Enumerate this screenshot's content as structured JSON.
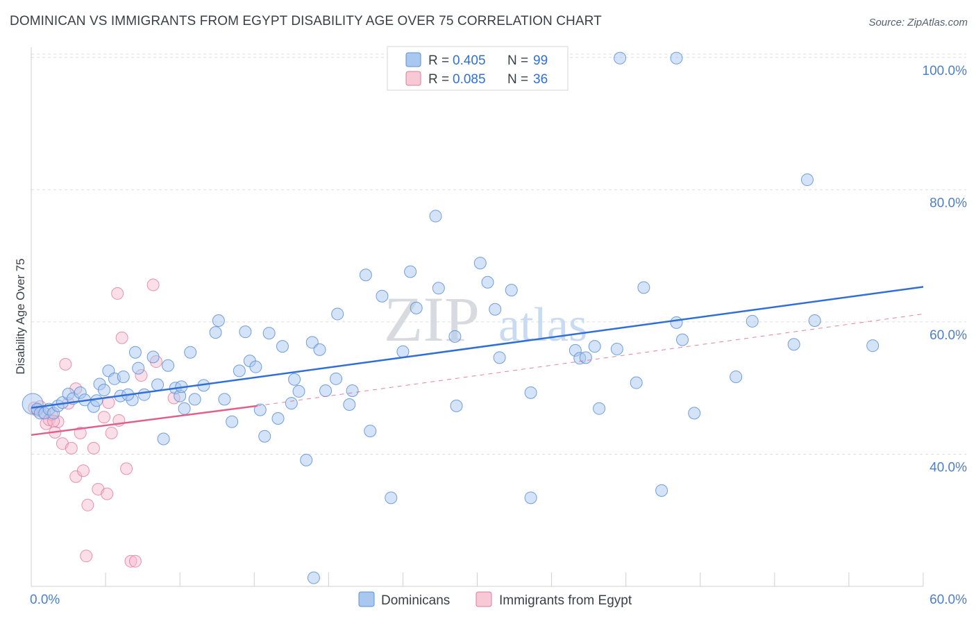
{
  "header": {
    "title": "DOMINICAN VS IMMIGRANTS FROM EGYPT DISABILITY AGE OVER 75 CORRELATION CHART",
    "source": "Source: ZipAtlas.com"
  },
  "watermark": {
    "part1": "ZIP",
    "part2": "atlas"
  },
  "legend": {
    "r_key": "R =",
    "n_key": "N =",
    "series": [
      {
        "r_value": "0.405",
        "n_value": "99"
      },
      {
        "r_value": "0.085",
        "n_value": "36"
      }
    ]
  },
  "colors": {
    "blue_fill": "#a9c8f0",
    "blue_stroke": "#5b8fd6",
    "blue_line": "#2f6fd6",
    "pink_fill": "#f7b8cc",
    "pink_stroke": "#e07a9c",
    "pink_line": "#e0608a",
    "grid": "#dddddd",
    "tick_label": "#4a7fd0"
  },
  "chart_data": {
    "type": "scatter",
    "title": "DOMINICAN VS IMMIGRANTS FROM EGYPT DISABILITY AGE OVER 75 CORRELATION CHART",
    "xlabel": "",
    "ylabel": "Disability Age Over 75",
    "x_tick_labels": [
      "0.0%",
      "60.0%"
    ],
    "y_tick_labels": [
      "40.0%",
      "60.0%",
      "80.0%",
      "100.0%"
    ],
    "xlim": [
      0,
      60
    ],
    "ylim": [
      20,
      102
    ],
    "y_ticks": [
      40,
      60,
      80,
      100
    ],
    "grid": true,
    "legend_position": "top-center",
    "series": [
      {
        "name": "Dominicans",
        "r": 0.405,
        "n": 99,
        "trend": {
          "x": [
            0,
            60
          ],
          "y": [
            47.0,
            65.3
          ],
          "style": "solid"
        },
        "points": [
          [
            0.1,
            47.6
          ],
          [
            0.4,
            46.8
          ],
          [
            0.6,
            46.2
          ],
          [
            0.9,
            46.2
          ],
          [
            1.2,
            46.8
          ],
          [
            1.5,
            46.2
          ],
          [
            1.8,
            47.3
          ],
          [
            2.1,
            47.8
          ],
          [
            2.5,
            49.1
          ],
          [
            2.8,
            48.4
          ],
          [
            3.3,
            49.3
          ],
          [
            3.6,
            48.2
          ],
          [
            4.2,
            47.2
          ],
          [
            4.4,
            48.1
          ],
          [
            4.6,
            50.6
          ],
          [
            4.9,
            49.7
          ],
          [
            5.2,
            52.6
          ],
          [
            5.6,
            51.4
          ],
          [
            6.0,
            48.8
          ],
          [
            6.2,
            51.7
          ],
          [
            6.8,
            48.2
          ],
          [
            6.5,
            49.0
          ],
          [
            7.0,
            55.4
          ],
          [
            7.2,
            53.0
          ],
          [
            7.6,
            49.0
          ],
          [
            8.2,
            54.7
          ],
          [
            8.5,
            50.5
          ],
          [
            8.9,
            42.3
          ],
          [
            9.2,
            53.4
          ],
          [
            9.7,
            50.0
          ],
          [
            10.0,
            48.8
          ],
          [
            10.3,
            46.9
          ],
          [
            10.7,
            55.4
          ],
          [
            11.0,
            48.3
          ],
          [
            11.6,
            50.4
          ],
          [
            12.4,
            58.4
          ],
          [
            12.6,
            60.2
          ],
          [
            13.0,
            48.3
          ],
          [
            13.5,
            44.9
          ],
          [
            14.0,
            52.6
          ],
          [
            14.4,
            58.5
          ],
          [
            14.7,
            54.1
          ],
          [
            15.1,
            53.2
          ],
          [
            15.4,
            46.7
          ],
          [
            15.7,
            42.7
          ],
          [
            16.0,
            58.3
          ],
          [
            16.6,
            45.4
          ],
          [
            16.9,
            56.3
          ],
          [
            17.5,
            47.7
          ],
          [
            17.7,
            51.3
          ],
          [
            18.0,
            49.5
          ],
          [
            18.5,
            39.1
          ],
          [
            18.9,
            56.9
          ],
          [
            19.0,
            21.3
          ],
          [
            19.4,
            55.8
          ],
          [
            19.8,
            49.6
          ],
          [
            20.6,
            61.2
          ],
          [
            20.5,
            51.4
          ],
          [
            21.4,
            47.5
          ],
          [
            21.6,
            49.6
          ],
          [
            22.5,
            67.1
          ],
          [
            22.8,
            43.5
          ],
          [
            23.6,
            63.9
          ],
          [
            24.2,
            33.4
          ],
          [
            25.0,
            55.5
          ],
          [
            25.5,
            67.6
          ],
          [
            25.9,
            62.1
          ],
          [
            27.2,
            76.0
          ],
          [
            27.4,
            65.1
          ],
          [
            28.5,
            57.8
          ],
          [
            28.6,
            47.3
          ],
          [
            30.2,
            68.9
          ],
          [
            30.7,
            66.0
          ],
          [
            31.2,
            61.9
          ],
          [
            31.5,
            54.6
          ],
          [
            32.3,
            64.8
          ],
          [
            33.6,
            49.3
          ],
          [
            33.6,
            33.4
          ],
          [
            36.6,
            55.7
          ],
          [
            36.9,
            54.5
          ],
          [
            37.3,
            54.6
          ],
          [
            38.2,
            46.9
          ],
          [
            39.4,
            55.9
          ],
          [
            39.6,
            99.9
          ],
          [
            40.7,
            50.8
          ],
          [
            41.2,
            65.2
          ],
          [
            42.4,
            34.5
          ],
          [
            43.4,
            59.9
          ],
          [
            43.8,
            57.3
          ],
          [
            44.6,
            46.2
          ],
          [
            47.4,
            51.7
          ],
          [
            48.5,
            60.1
          ],
          [
            51.3,
            56.6
          ],
          [
            52.2,
            81.5
          ],
          [
            52.7,
            60.2
          ],
          [
            56.6,
            56.4
          ],
          [
            43.4,
            99.9
          ],
          [
            37.9,
            56.3
          ],
          [
            10.1,
            50.2
          ]
        ]
      },
      {
        "name": "Immigrants from Egypt",
        "r": 0.085,
        "n": 36,
        "trend": {
          "x": [
            0,
            15.2
          ],
          "y": [
            42.9,
            47.3
          ],
          "style": "solid",
          "dashed_extension_to_x": 60,
          "dashed_extension_y": 61.2
        },
        "points": [
          [
            0.2,
            47.0
          ],
          [
            0.4,
            46.6
          ],
          [
            0.6,
            47.2
          ],
          [
            0.8,
            46.3
          ],
          [
            1.0,
            44.6
          ],
          [
            1.2,
            45.2
          ],
          [
            1.4,
            46.0
          ],
          [
            1.6,
            43.3
          ],
          [
            1.8,
            44.9
          ],
          [
            2.1,
            41.6
          ],
          [
            2.3,
            53.6
          ],
          [
            2.5,
            47.7
          ],
          [
            2.7,
            40.9
          ],
          [
            3.0,
            49.9
          ],
          [
            3.0,
            36.6
          ],
          [
            3.3,
            43.2
          ],
          [
            3.5,
            37.5
          ],
          [
            3.7,
            24.6
          ],
          [
            3.8,
            32.3
          ],
          [
            4.2,
            40.9
          ],
          [
            4.5,
            34.7
          ],
          [
            4.9,
            45.6
          ],
          [
            5.1,
            34.0
          ],
          [
            5.2,
            47.8
          ],
          [
            5.4,
            43.2
          ],
          [
            5.8,
            64.3
          ],
          [
            5.9,
            45.1
          ],
          [
            6.1,
            57.6
          ],
          [
            6.4,
            37.8
          ],
          [
            6.7,
            23.8
          ],
          [
            7.0,
            23.8
          ],
          [
            7.4,
            51.9
          ],
          [
            8.2,
            65.6
          ],
          [
            8.4,
            54.0
          ],
          [
            9.6,
            48.5
          ],
          [
            1.5,
            45.0
          ]
        ]
      }
    ]
  },
  "bottom_legend": {
    "items": [
      "Dominicans",
      "Immigrants from Egypt"
    ]
  }
}
